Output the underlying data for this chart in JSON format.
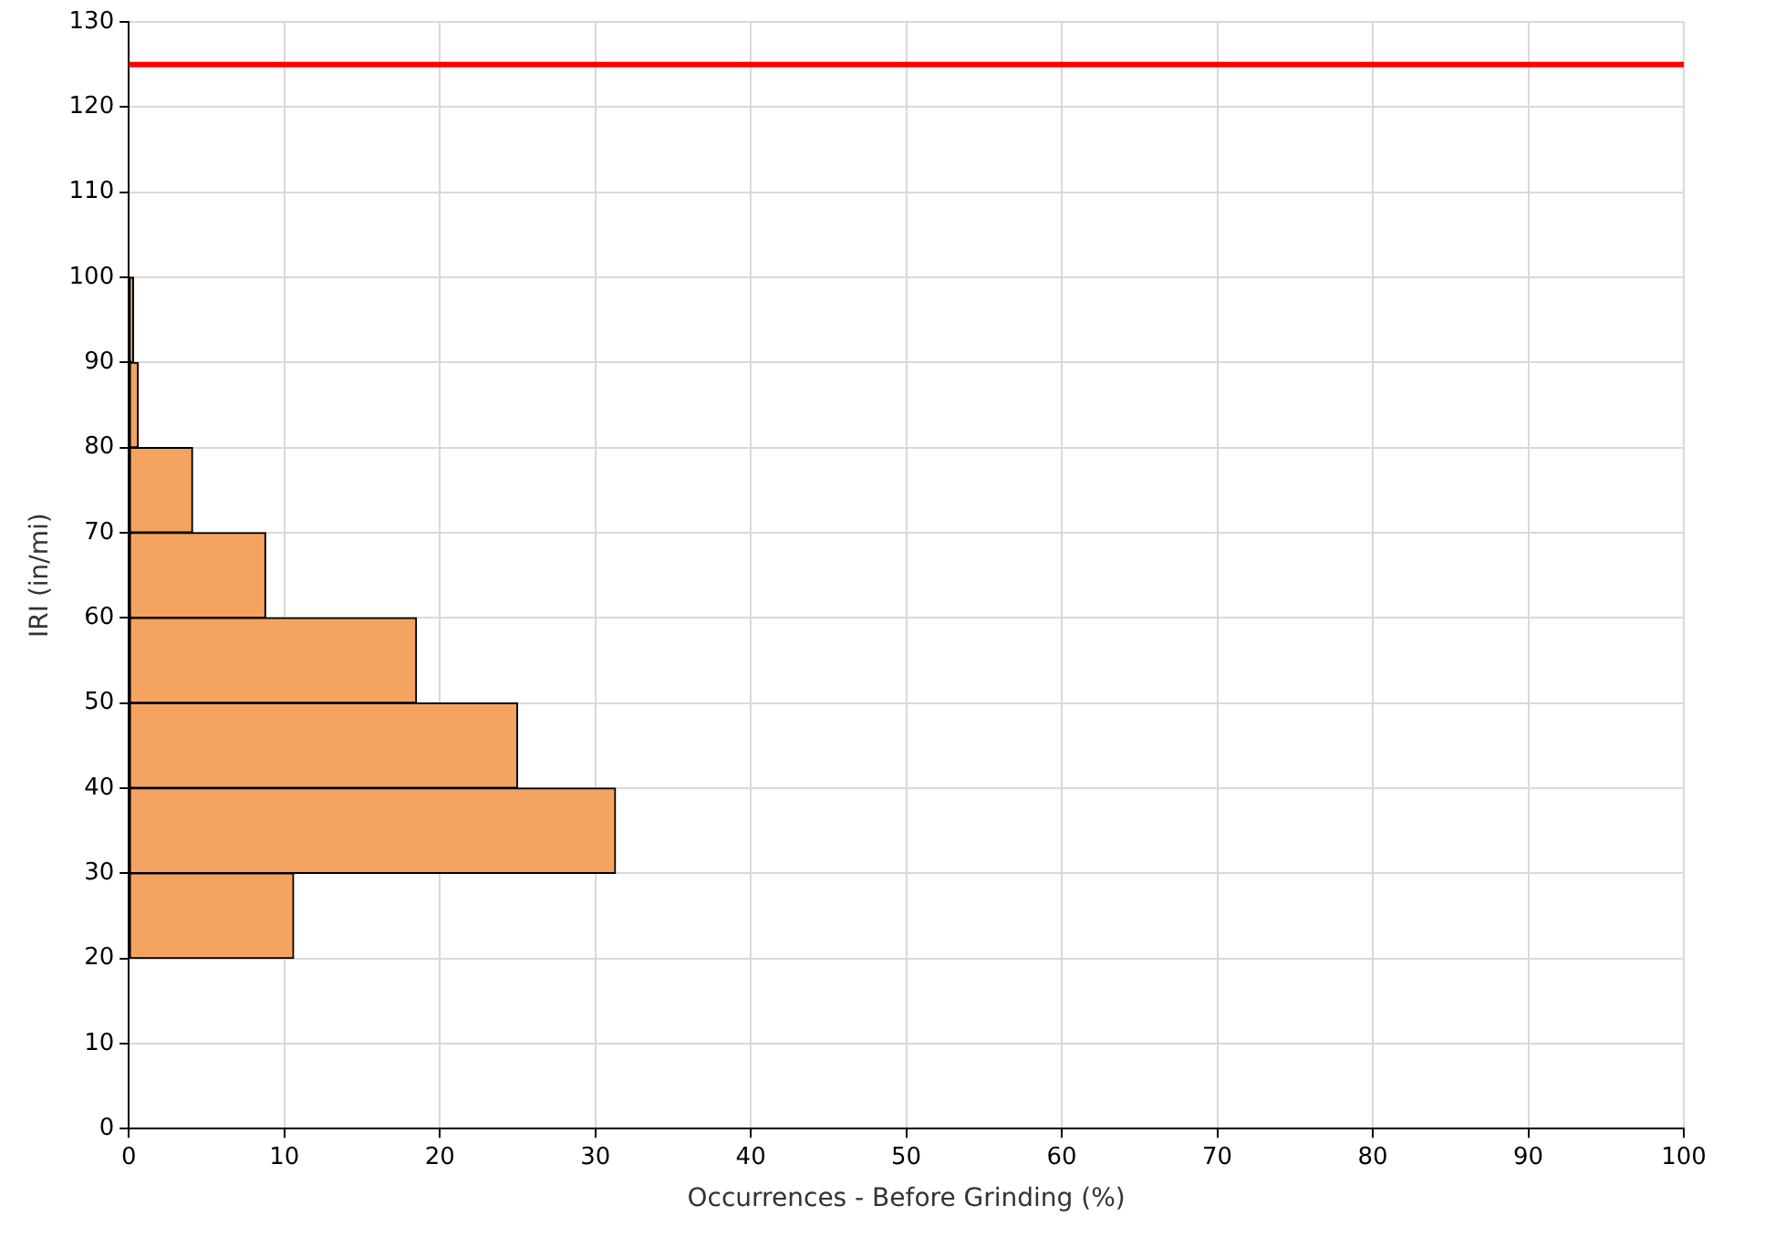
{
  "chart_data": {
    "type": "histogram",
    "orientation": "horizontal",
    "xlabel": "Occurrences - Before Grinding (%)",
    "ylabel": "IRI (in/mi)",
    "bins": [
      20,
      30,
      40,
      50,
      60,
      70,
      80,
      90,
      100
    ],
    "values": [
      10.6,
      31.3,
      25.0,
      18.5,
      8.8,
      4.1,
      0.6,
      0.3
    ],
    "color": "#f4a460",
    "xlim": [
      0,
      100
    ],
    "xticks": [
      0,
      10,
      20,
      30,
      40,
      50,
      60,
      70,
      80,
      90,
      100
    ],
    "ylim": [
      0,
      130
    ],
    "yticks": [
      0,
      10,
      20,
      30,
      40,
      50,
      60,
      70,
      80,
      90,
      100,
      110,
      120,
      130
    ],
    "ref_lines": [
      {
        "axis": "y",
        "value": 125,
        "color": "#ff0000"
      }
    ],
    "grid": true,
    "legend": false
  }
}
